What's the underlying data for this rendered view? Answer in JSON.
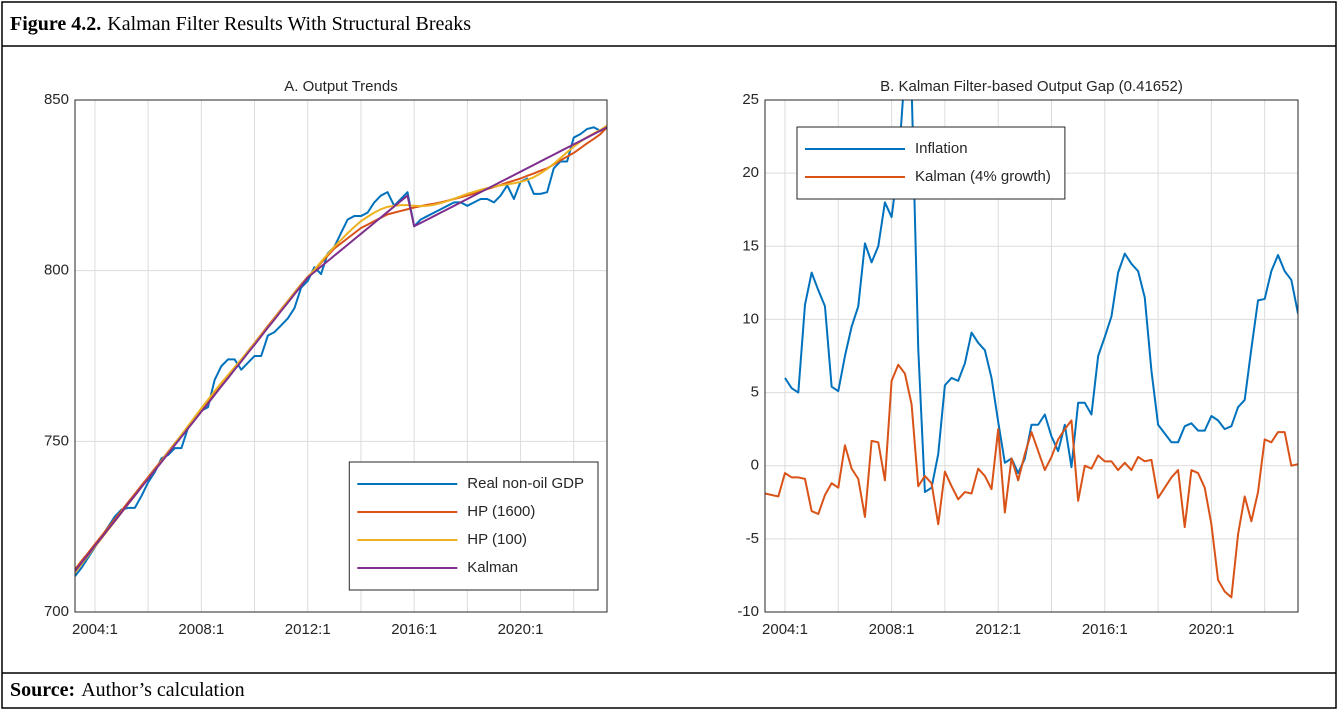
{
  "figure": {
    "label": "Figure 4.2.",
    "title": "Kalman Filter Results With Structural Breaks"
  },
  "source": {
    "label": "Source:",
    "text": "Author’s calculation"
  },
  "chart_data": [
    {
      "type": "line",
      "title": "A. Output Trends",
      "x": [
        "2003:2",
        "2003:3",
        "2003:4",
        "2004:1",
        "2004:2",
        "2004:3",
        "2004:4",
        "2005:1",
        "2005:2",
        "2005:3",
        "2005:4",
        "2006:1",
        "2006:2",
        "2006:3",
        "2006:4",
        "2007:1",
        "2007:2",
        "2007:3",
        "2007:4",
        "2008:1",
        "2008:2",
        "2008:3",
        "2008:4",
        "2009:1",
        "2009:2",
        "2009:3",
        "2009:4",
        "2010:1",
        "2010:2",
        "2010:3",
        "2010:4",
        "2011:1",
        "2011:2",
        "2011:3",
        "2011:4",
        "2012:1",
        "2012:2",
        "2012:3",
        "2012:4",
        "2013:1",
        "2013:2",
        "2013:3",
        "2013:4",
        "2014:1",
        "2014:2",
        "2014:3",
        "2014:4",
        "2015:1",
        "2015:2",
        "2015:3",
        "2015:4",
        "2016:1",
        "2016:2",
        "2016:3",
        "2016:4",
        "2017:1",
        "2017:2",
        "2017:3",
        "2017:4",
        "2018:1",
        "2018:2",
        "2018:3",
        "2018:4",
        "2019:1",
        "2019:2",
        "2019:3",
        "2019:4",
        "2020:1",
        "2020:2",
        "2020:3",
        "2020:4",
        "2021:1",
        "2021:2",
        "2021:3",
        "2021:4",
        "2022:1",
        "2022:2",
        "2022:3",
        "2022:4",
        "2023:1",
        "2023:2"
      ],
      "xticks": [
        "2004:1",
        "2008:1",
        "2012:1",
        "2016:1",
        "2020:1"
      ],
      "ylim": [
        700,
        850
      ],
      "yticks": [
        700,
        750,
        800,
        850
      ],
      "grid": true,
      "legend": "lower right",
      "series": [
        {
          "name": "Real non-oil GDP",
          "color": "#0072BD",
          "values": [
            710.5,
            713,
            716,
            719,
            722,
            725,
            728,
            730,
            730.5,
            730.5,
            734,
            738,
            741,
            745,
            746,
            748,
            748,
            754,
            757,
            759,
            760,
            768,
            772,
            774,
            774,
            771,
            773,
            775,
            775,
            781,
            782,
            784,
            786,
            789,
            795,
            797,
            801,
            799,
            805,
            807,
            811,
            815,
            816,
            816,
            817,
            820,
            822,
            823,
            819,
            821,
            823,
            813,
            815,
            816,
            817,
            818,
            819,
            820,
            820,
            819,
            820,
            821,
            821,
            820,
            822,
            825,
            821,
            826,
            827,
            822.5,
            822.5,
            823,
            830,
            832,
            832,
            839,
            840,
            841.5,
            842,
            841,
            842
          ]
        },
        {
          "name": "HP (1600)",
          "color": "#D95319",
          "values": [
            712.5,
            715.0,
            717.4,
            719.9,
            722.3,
            724.8,
            727.2,
            729.7,
            732.2,
            734.6,
            737.1,
            739.5,
            742.0,
            744.4,
            746.9,
            749.4,
            751.8,
            754.3,
            756.7,
            759.2,
            761.6,
            764.1,
            766.6,
            769.0,
            771.5,
            773.9,
            776.4,
            778.8,
            781.3,
            783.8,
            786.2,
            788.7,
            791.1,
            793.6,
            796.0,
            798.2,
            800.1,
            802.3,
            804.4,
            806.5,
            808.0,
            809.5,
            811.0,
            812.5,
            813.5,
            814.5,
            815.5,
            816.5,
            817.0,
            817.5,
            818.0,
            818.5,
            818.9,
            819.3,
            819.6,
            820.0,
            820.5,
            821.0,
            821.5,
            822.0,
            822.6,
            823.3,
            823.9,
            824.5,
            825.1,
            825.8,
            826.4,
            827.0,
            827.8,
            828.5,
            829.3,
            830.0,
            831.1,
            832.3,
            833.4,
            834.5,
            835.9,
            837.3,
            838.6,
            840.0,
            842.0
          ]
        },
        {
          "name": "HP (100)",
          "color": "#EDB120",
          "values": [
            711.5,
            714.1,
            716.6,
            719.1,
            721.6,
            724.1,
            726.6,
            729.1,
            731.6,
            734.1,
            736.6,
            739.1,
            741.6,
            744.1,
            746.7,
            749.3,
            751.9,
            754.5,
            757.1,
            759.7,
            762.2,
            764.7,
            767.1,
            769.4,
            771.7,
            774.0,
            776.3,
            778.7,
            781.1,
            783.5,
            786.0,
            788.5,
            791.0,
            793.5,
            795.8,
            798.1,
            800.3,
            802.6,
            804.8,
            807.0,
            809.0,
            811.0,
            812.8,
            814.5,
            815.8,
            817.0,
            818.0,
            818.7,
            819.0,
            819.2,
            819.2,
            819.0,
            818.9,
            819.0,
            819.3,
            819.8,
            820.4,
            821.1,
            821.8,
            822.5,
            823.1,
            823.7,
            824.2,
            824.6,
            825.0,
            825.3,
            825.6,
            826.0,
            826.6,
            827.4,
            828.5,
            829.8,
            831.3,
            833.0,
            834.7,
            836.3,
            837.8,
            839.1,
            840.2,
            841.2,
            842.5
          ]
        },
        {
          "name": "Kalman",
          "color": "#7E2F8E",
          "values": [
            712,
            714.5,
            716.9,
            719.4,
            721.8,
            724.3,
            726.7,
            729.2,
            731.7,
            734.1,
            736.6,
            739.0,
            741.5,
            743.9,
            746.4,
            748.9,
            751.3,
            753.8,
            756.2,
            758.7,
            761.1,
            763.6,
            766.1,
            768.5,
            771.0,
            773.4,
            775.9,
            778.3,
            780.8,
            783.3,
            785.7,
            788.2,
            790.6,
            793.1,
            795.5,
            798.0,
            799.6,
            801.2,
            802.8,
            804.4,
            806.0,
            807.6,
            809.2,
            810.8,
            812.4,
            814.0,
            815.6,
            817.2,
            818.8,
            820.4,
            822.0,
            813,
            814,
            815,
            816,
            817,
            818,
            819,
            820,
            821,
            822,
            823,
            824,
            825,
            826,
            827,
            828,
            829,
            830,
            831,
            832,
            833,
            834,
            835,
            836,
            837,
            838,
            839,
            840,
            841,
            842
          ]
        }
      ]
    },
    {
      "type": "line",
      "title": "B. Kalman Filter-based Output Gap (0.41652)",
      "x": [
        "2003:2",
        "2003:3",
        "2003:4",
        "2004:1",
        "2004:2",
        "2004:3",
        "2004:4",
        "2005:1",
        "2005:2",
        "2005:3",
        "2005:4",
        "2006:1",
        "2006:2",
        "2006:3",
        "2006:4",
        "2007:1",
        "2007:2",
        "2007:3",
        "2007:4",
        "2008:1",
        "2008:2",
        "2008:3",
        "2008:4",
        "2009:1",
        "2009:2",
        "2009:3",
        "2009:4",
        "2010:1",
        "2010:2",
        "2010:3",
        "2010:4",
        "2011:1",
        "2011:2",
        "2011:3",
        "2011:4",
        "2012:1",
        "2012:2",
        "2012:3",
        "2012:4",
        "2013:1",
        "2013:2",
        "2013:3",
        "2013:4",
        "2014:1",
        "2014:2",
        "2014:3",
        "2014:4",
        "2015:1",
        "2015:2",
        "2015:3",
        "2015:4",
        "2016:1",
        "2016:2",
        "2016:3",
        "2016:4",
        "2017:1",
        "2017:2",
        "2017:3",
        "2017:4",
        "2018:1",
        "2018:2",
        "2018:3",
        "2018:4",
        "2019:1",
        "2019:2",
        "2019:3",
        "2019:4",
        "2020:1",
        "2020:2",
        "2020:3",
        "2020:4",
        "2021:1",
        "2021:2",
        "2021:3",
        "2021:4",
        "2022:1",
        "2022:2",
        "2022:3",
        "2022:4",
        "2023:1",
        "2023:2"
      ],
      "xticks": [
        "2004:1",
        "2008:1",
        "2012:1",
        "2016:1",
        "2020:1"
      ],
      "ylim": [
        -10,
        25
      ],
      "yticks": [
        -10,
        -5,
        0,
        5,
        10,
        15,
        20,
        25
      ],
      "grid": true,
      "legend": "upper left",
      "series": [
        {
          "name": "Inflation",
          "color": "#0072BD",
          "values": [
            null,
            null,
            null,
            6.0,
            5.3,
            5.0,
            11.0,
            13.2,
            12.0,
            10.9,
            5.4,
            5.1,
            7.5,
            9.5,
            10.9,
            15.2,
            13.9,
            15.0,
            18.0,
            17.0,
            20.5,
            27,
            26,
            8,
            -1.8,
            -1.5,
            0.8,
            5.5,
            6.0,
            5.8,
            7.0,
            9.1,
            8.4,
            7.9,
            6.0,
            3.0,
            0.2,
            0.5,
            -0.5,
            0.5,
            2.8,
            2.8,
            3.5,
            2.0,
            1.0,
            2.8,
            -0.1,
            4.3,
            4.3,
            3.5,
            7.5,
            8.8,
            10.2,
            13.2,
            14.5,
            13.8,
            13.3,
            11.5,
            6.5,
            2.8,
            2.2,
            1.6,
            1.6,
            2.7,
            2.9,
            2.4,
            2.4,
            3.4,
            3.1,
            2.5,
            2.7,
            4.0,
            4.5,
            8.0,
            11.3,
            11.4,
            13.3,
            14.4,
            13.3,
            12.7,
            10.4
          ]
        },
        {
          "name": "Kalman (4% growth)",
          "color": "#D95319",
          "values": [
            -1.9,
            -2.0,
            -2.1,
            -0.5,
            -0.8,
            -0.8,
            -0.9,
            -3.1,
            -3.3,
            -2.0,
            -1.2,
            -1.5,
            1.4,
            -0.2,
            -0.9,
            -3.5,
            1.7,
            1.6,
            -1.0,
            5.8,
            6.9,
            6.3,
            4.2,
            -1.4,
            -0.7,
            -1.2,
            -4.0,
            -0.4,
            -1.4,
            -2.3,
            -1.8,
            -1.9,
            -0.2,
            -0.7,
            -1.6,
            2.5,
            -3.2,
            0.5,
            -1.0,
            0.8,
            2.3,
            1.0,
            -0.3,
            0.6,
            1.8,
            2.5,
            3.1,
            -2.4,
            0.0,
            -0.2,
            0.7,
            0.3,
            0.3,
            -0.3,
            0.2,
            -0.3,
            0.6,
            0.3,
            0.4,
            -2.2,
            -1.5,
            -0.8,
            -0.3,
            -4.2,
            -0.3,
            -0.5,
            -1.5,
            -4.0,
            -7.8,
            -8.6,
            -9.0,
            -4.7,
            -2.1,
            -3.8,
            -1.8,
            1.8,
            1.6,
            2.3,
            2.3,
            0.0,
            0.1
          ]
        }
      ]
    }
  ]
}
